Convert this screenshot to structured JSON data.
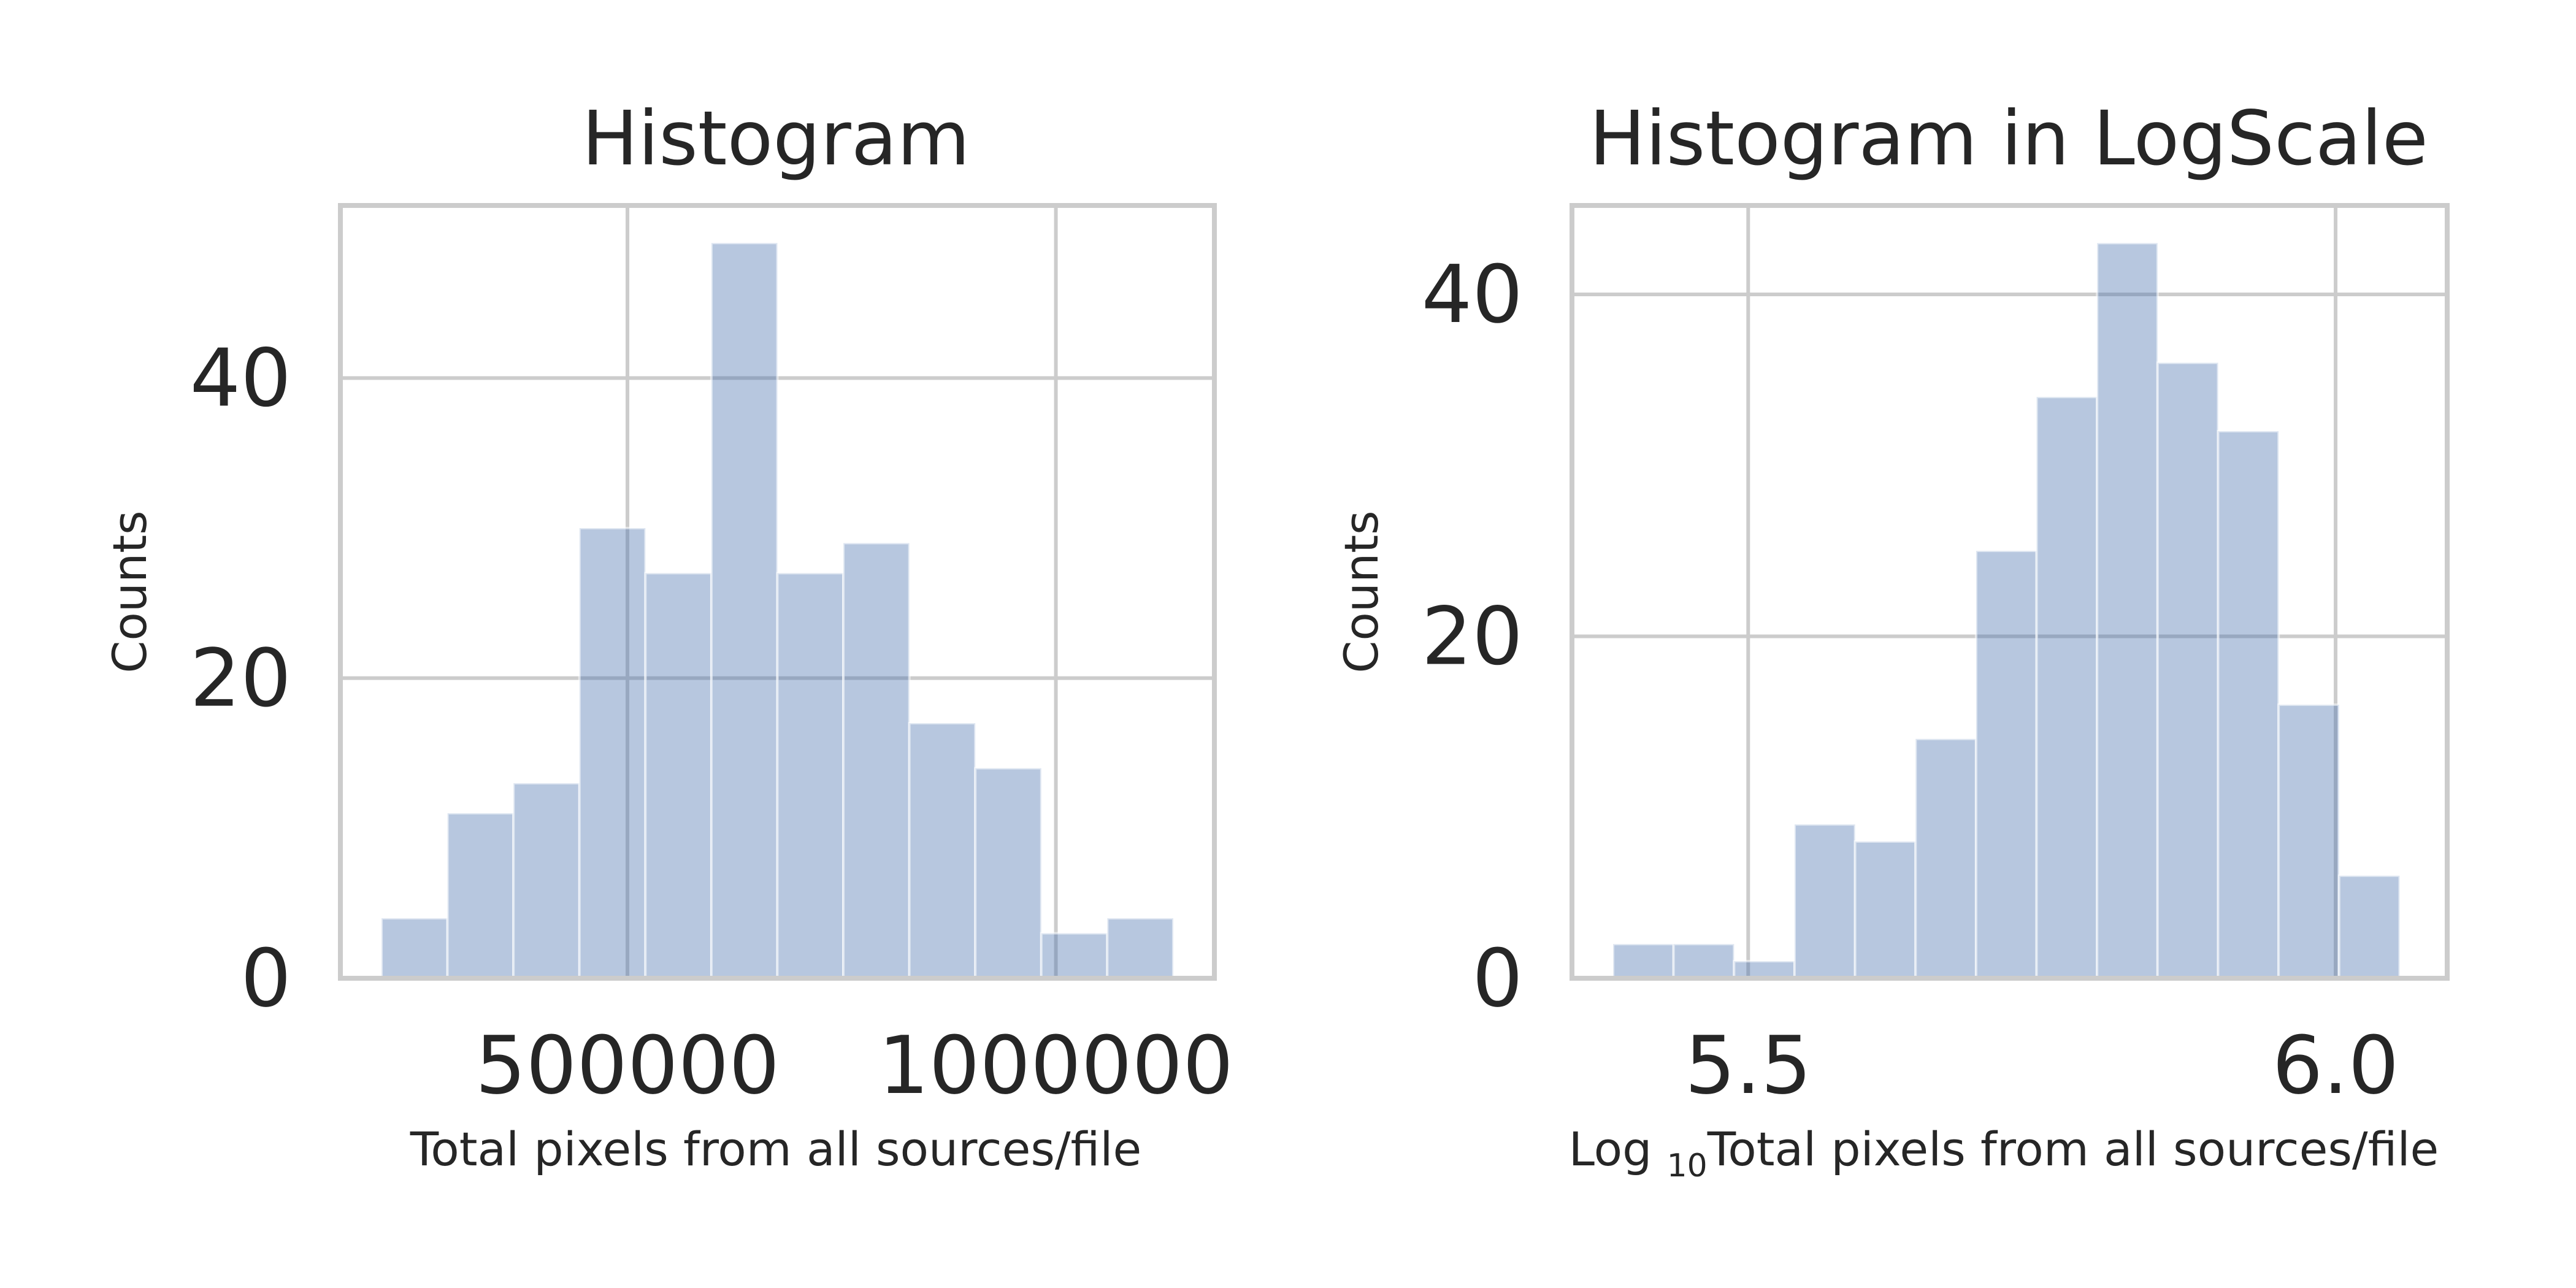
{
  "chart_data": [
    {
      "type": "bar",
      "title": "Histogram",
      "xlabel": "Total pixels from all sources/file",
      "ylabel": "Counts",
      "xlim": [
        165000,
        1185000
      ],
      "ylim": [
        0,
        51.5
      ],
      "xticks": [
        500000,
        1000000
      ],
      "xtick_labels": [
        "500000",
        "1000000"
      ],
      "yticks": [
        0,
        20,
        40
      ],
      "ytick_labels": [
        "0",
        "20",
        "40"
      ],
      "bin_edges": [
        213000,
        290000,
        367000,
        444000,
        521000,
        598000,
        675000,
        752000,
        829000,
        906000,
        983000,
        1060000,
        1137000
      ],
      "values": [
        4,
        11,
        13,
        30,
        27,
        49,
        27,
        29,
        17,
        14,
        3,
        4
      ],
      "grid": true,
      "bar_color": "#4c72b0"
    },
    {
      "type": "bar",
      "title": "Histogram in LogScale",
      "xlabel_prefix": "Log ",
      "xlabel_sub": "10",
      "xlabel_rest": "Total pixels from all sources/file",
      "ylabel": "Counts",
      "xlim": [
        5.35,
        6.095
      ],
      "ylim": [
        0,
        45.2
      ],
      "xticks": [
        5.5,
        6.0
      ],
      "xtick_labels": [
        "5.5",
        "6.0"
      ],
      "yticks": [
        0,
        20,
        40
      ],
      "ytick_labels": [
        "0",
        "20",
        "40"
      ],
      "bin_edges": [
        5.385,
        5.4365,
        5.488,
        5.5395,
        5.591,
        5.6425,
        5.694,
        5.7455,
        5.797,
        5.8485,
        5.9,
        5.9515,
        6.003,
        6.0545
      ],
      "values": [
        2,
        2,
        1,
        9,
        8,
        14,
        25,
        34,
        43,
        36,
        32,
        16,
        6
      ],
      "grid": true,
      "bar_color": "#4c72b0"
    }
  ]
}
